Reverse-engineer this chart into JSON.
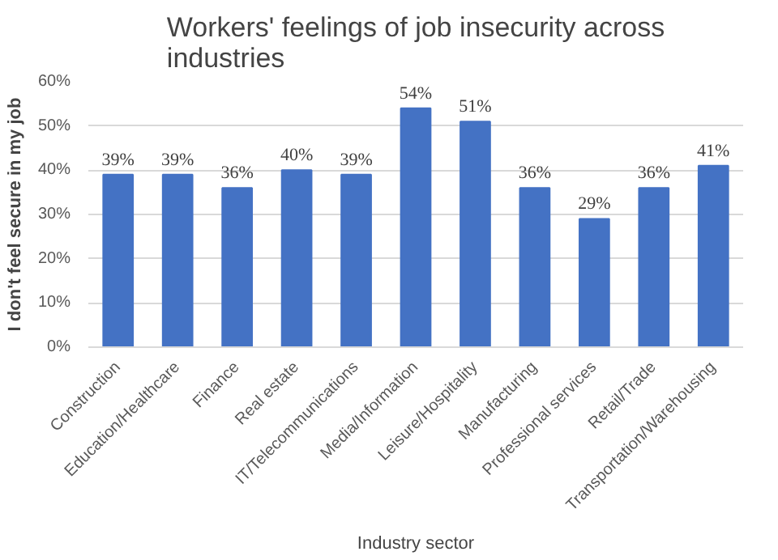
{
  "chart_data": {
    "type": "bar",
    "title": "Workers' feelings of job insecurity across industries",
    "xlabel": "Industry sector",
    "ylabel": "I don't feel secure in my job",
    "categories": [
      "Construction",
      "Education/Healthcare",
      "Finance",
      "Real estate",
      "IT/Telecommunications",
      "Media/Information",
      "Leisure/Hospitality",
      "Manufacturing",
      "Professional services",
      "Retail/Trade",
      "Transportation/Warehousing"
    ],
    "values": [
      39,
      39,
      36,
      40,
      39,
      54,
      51,
      36,
      29,
      36,
      41
    ],
    "value_labels": [
      "39%",
      "39%",
      "36%",
      "40%",
      "39%",
      "54%",
      "51%",
      "36%",
      "29%",
      "36%",
      "41%"
    ],
    "color": "#4472c4",
    "ylim": [
      0,
      60
    ],
    "yticks": [
      {
        "value": 0,
        "label": "0%"
      },
      {
        "value": 10,
        "label": "10%"
      },
      {
        "value": 20,
        "label": "20%"
      },
      {
        "value": 30,
        "label": "30%"
      },
      {
        "value": 40,
        "label": "40%"
      },
      {
        "value": 50,
        "label": "50%"
      },
      {
        "value": 60,
        "label": "60%"
      }
    ],
    "grid": "y"
  }
}
